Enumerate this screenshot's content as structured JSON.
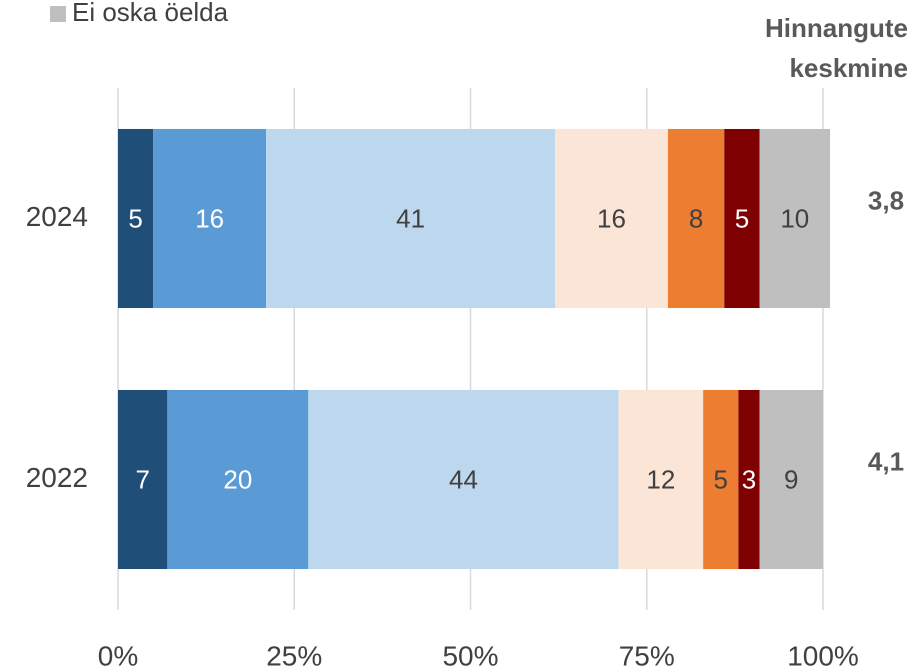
{
  "chart_data": {
    "type": "stacked_bar_horizontal",
    "categories": [
      "2024",
      "2022"
    ],
    "series": [
      {
        "color": "#1f4e79",
        "label_color": "#ffffff",
        "values": [
          5,
          7
        ]
      },
      {
        "color": "#5b9bd5",
        "label_color": "#ffffff",
        "values": [
          16,
          20
        ]
      },
      {
        "color": "#bdd7ee",
        "label_color": "#404040",
        "values": [
          41,
          44
        ]
      },
      {
        "color": "#fbe5d6",
        "label_color": "#404040",
        "values": [
          16,
          12
        ]
      },
      {
        "color": "#ed7d31",
        "label_color": "#404040",
        "values": [
          8,
          5
        ]
      },
      {
        "color": "#7f0000",
        "label_color": "#ffffff",
        "values": [
          5,
          3
        ]
      },
      {
        "name": "Ei oska öelda",
        "color": "#bfbfbf",
        "label_color": "#404040",
        "values": [
          10,
          9
        ]
      }
    ],
    "xlim": [
      0,
      100
    ],
    "xticks": [
      {
        "value": 0,
        "label": "0%"
      },
      {
        "value": 25,
        "label": "25%"
      },
      {
        "value": 50,
        "label": "50%"
      },
      {
        "value": 75,
        "label": "75%"
      },
      {
        "value": 100,
        "label": "100%"
      }
    ],
    "grid": true,
    "annotation": {
      "title_lines": [
        "Hinnangute",
        "keskmine"
      ],
      "values": [
        3.8,
        4.1
      ],
      "value_labels": [
        "3,8",
        "4,1"
      ]
    }
  }
}
